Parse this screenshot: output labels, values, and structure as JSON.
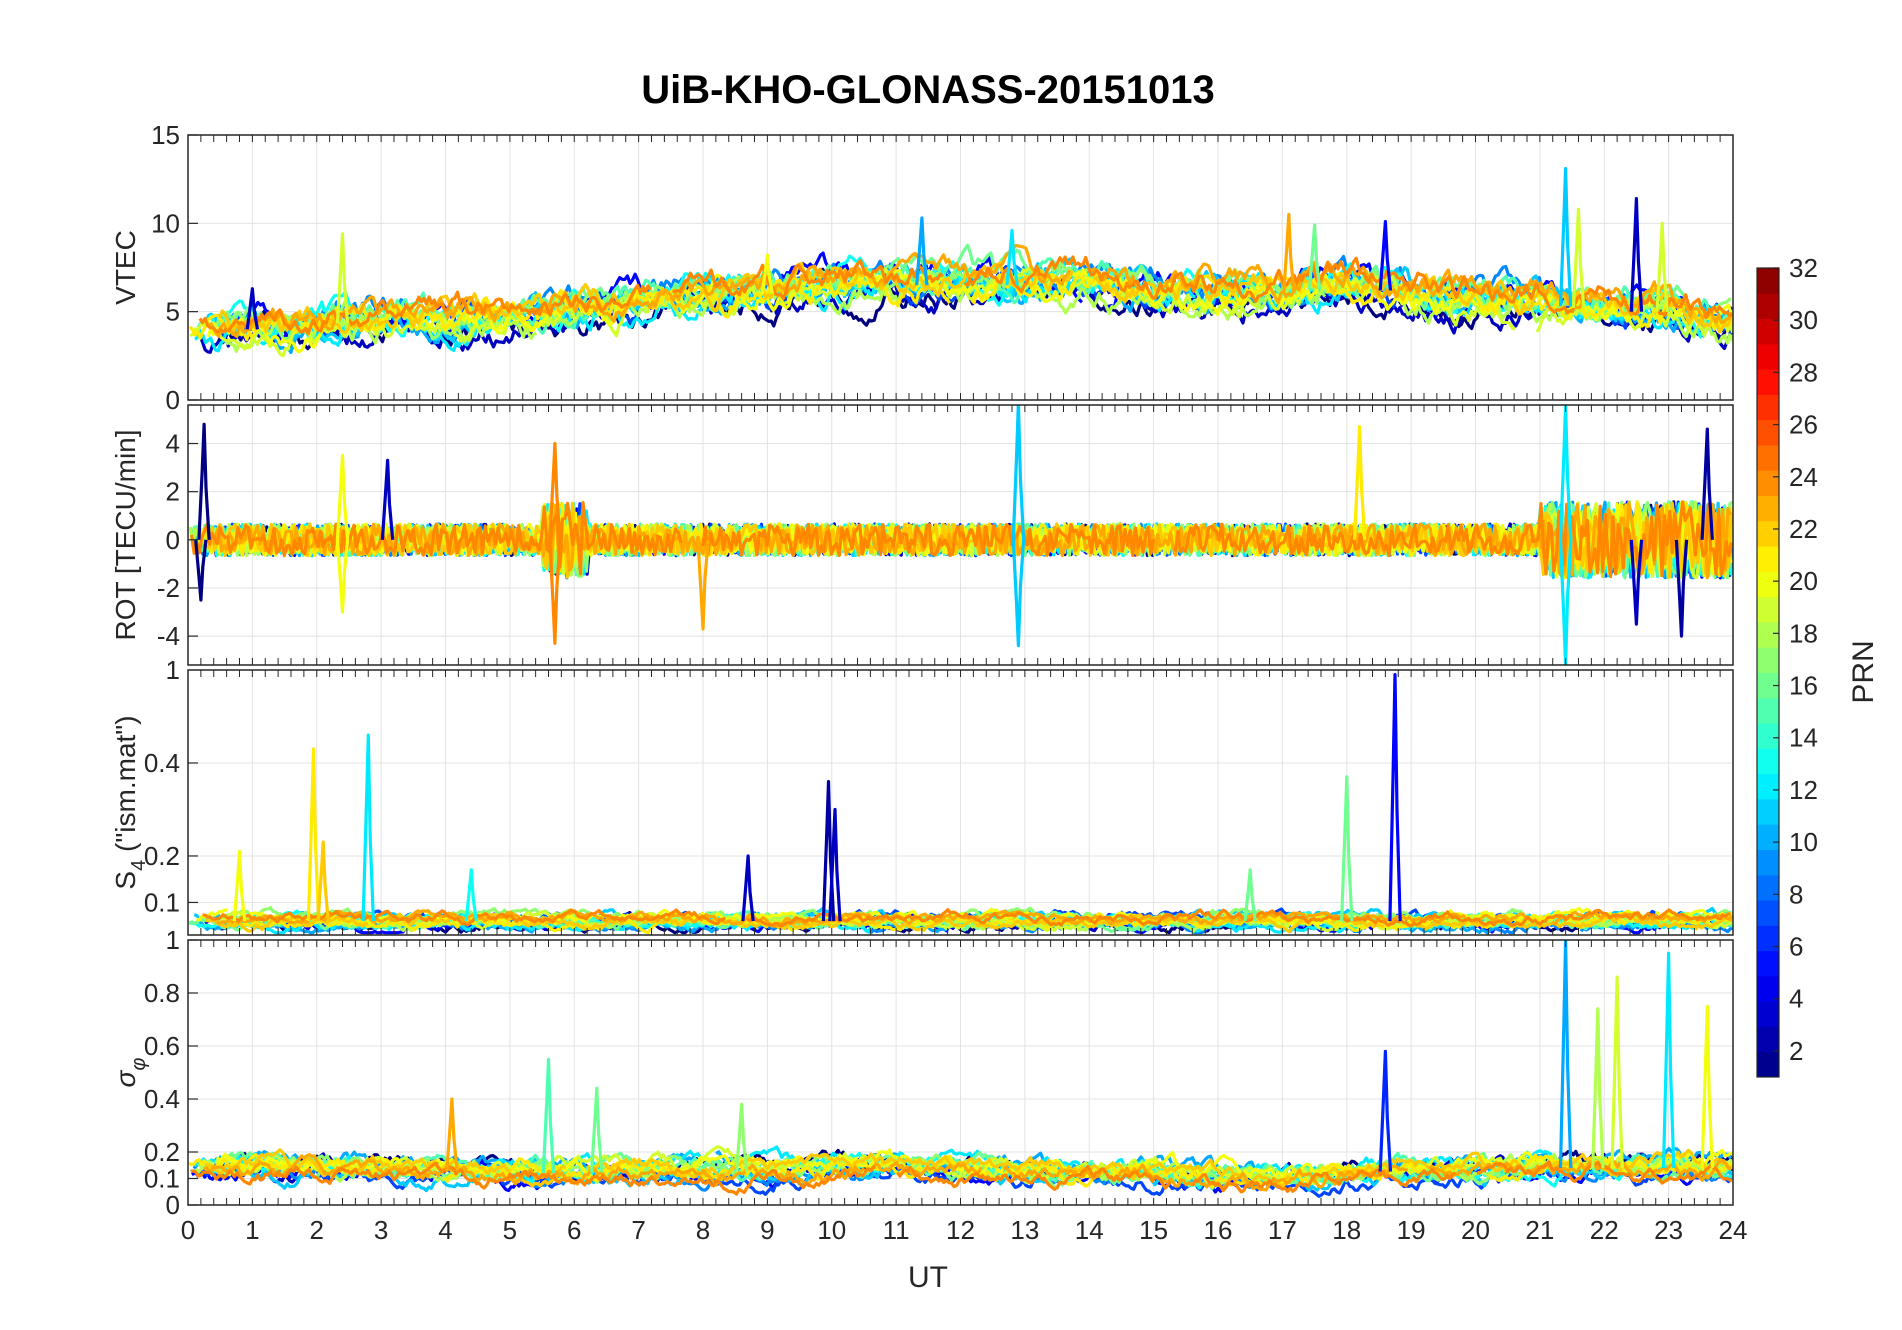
{
  "chart_data": {
    "type": "line",
    "title": "UiB-KHO-GLONASS-20151013",
    "xlabel": "UT",
    "x_ticks": [
      "0",
      "1",
      "2",
      "3",
      "4",
      "5",
      "6",
      "7",
      "8",
      "9",
      "10",
      "11",
      "12",
      "13",
      "14",
      "15",
      "16",
      "17",
      "18",
      "19",
      "20",
      "21",
      "22",
      "23",
      "24"
    ],
    "xlim": [
      0,
      24
    ],
    "grid": true,
    "colorbar": {
      "label": "PRN",
      "range": [
        1,
        32
      ],
      "ticks": [
        "2",
        "4",
        "6",
        "8",
        "10",
        "12",
        "14",
        "16",
        "18",
        "20",
        "22",
        "24",
        "26",
        "28",
        "30",
        "32"
      ],
      "colormap": "jet"
    },
    "panels": [
      {
        "id": "vtec",
        "ylabel": "VTEC",
        "ylim": [
          0,
          15
        ],
        "yticks": [
          "0",
          "5",
          "10",
          "15"
        ],
        "baseline": [
          3.8,
          4.0,
          4.2,
          4.5,
          4.5,
          4.5,
          5.0,
          5.5,
          6.0,
          6.0,
          6.5,
          6.5,
          6.5,
          6.5,
          6.5,
          6.0,
          6.0,
          6.0,
          6.5,
          6.0,
          5.5,
          5.5,
          5.0,
          5.0,
          4.0
        ],
        "amplitude": 1.0,
        "spikes": [
          [
            1,
            6.3,
            3
          ],
          [
            2.4,
            9.4,
            19
          ],
          [
            9,
            8.2,
            20
          ],
          [
            11.4,
            10.3,
            10
          ],
          [
            12.8,
            9.6,
            12
          ],
          [
            17.1,
            10.5,
            23
          ],
          [
            17.5,
            9.9,
            16
          ],
          [
            18.6,
            10.1,
            5
          ],
          [
            21.4,
            13.1,
            11
          ],
          [
            21.6,
            10.8,
            19
          ],
          [
            22.5,
            11.4,
            3
          ],
          [
            22.9,
            10,
            19
          ]
        ]
      },
      {
        "id": "rot",
        "ylabel": "ROT [TECU/min]",
        "ylim": [
          -5.2,
          5.6
        ],
        "yticks": [
          "-4",
          "-2",
          "0",
          "2",
          "4"
        ],
        "baseline": [
          0,
          0,
          0,
          0,
          0,
          0,
          0,
          0,
          0,
          0,
          0,
          0,
          0,
          0,
          0,
          0,
          0,
          0,
          0,
          0,
          0,
          0,
          0,
          0,
          0
        ],
        "amplitude": 0.6,
        "spikes": [
          [
            0.25,
            4.8,
            1
          ],
          [
            0.2,
            -2.5,
            1
          ],
          [
            2.4,
            3.5,
            20
          ],
          [
            2.4,
            -3,
            20
          ],
          [
            3.1,
            3.3,
            3
          ],
          [
            5.7,
            4,
            24
          ],
          [
            5.7,
            -4.3,
            24
          ],
          [
            8,
            -3.7,
            23
          ],
          [
            12.9,
            5.7,
            11
          ],
          [
            12.9,
            -4.4,
            11
          ],
          [
            18.2,
            4.7,
            21
          ],
          [
            21.4,
            5.6,
            12
          ],
          [
            21.4,
            -5.2,
            12
          ],
          [
            22.5,
            -3.5,
            3
          ],
          [
            23.6,
            4.6,
            2
          ],
          [
            23.2,
            -4,
            2
          ]
        ]
      },
      {
        "id": "s4",
        "ylabel": "S4 (\"ism.mat\")",
        "ylabel_main": "S",
        "ylabel_sub": "4",
        "ylabel_rest": " (\"ism.mat\")",
        "ylim": [
          0.03,
          0.6
        ],
        "yticks": [
          "0.1",
          "0.2",
          "0.4"
        ],
        "ytick_values": [
          0.1,
          0.2,
          0.4
        ],
        "top_tick": "1",
        "baseline": [
          0.06,
          0.06,
          0.06,
          0.06,
          0.06,
          0.06,
          0.06,
          0.06,
          0.06,
          0.06,
          0.06,
          0.06,
          0.06,
          0.06,
          0.06,
          0.06,
          0.06,
          0.06,
          0.06,
          0.06,
          0.06,
          0.06,
          0.06,
          0.06,
          0.06
        ],
        "amplitude": 0.015,
        "spikes": [
          [
            0.8,
            0.21,
            20
          ],
          [
            1.95,
            0.43,
            21
          ],
          [
            2.1,
            0.23,
            22
          ],
          [
            2.8,
            0.46,
            12
          ],
          [
            8.7,
            0.2,
            3
          ],
          [
            9.95,
            0.36,
            2
          ],
          [
            10.05,
            0.3,
            3
          ],
          [
            18,
            0.37,
            16
          ],
          [
            18.75,
            0.59,
            5
          ],
          [
            4.4,
            0.17,
            13
          ],
          [
            16.5,
            0.17,
            16
          ]
        ]
      },
      {
        "id": "sigma_phi",
        "ylabel": "σφ",
        "ylabel_main": "σ",
        "ylabel_sub": "φ",
        "ylim": [
          0,
          1
        ],
        "yticks": [
          "0",
          "0.1",
          "0.2",
          "0.4",
          "0.6",
          "0.8",
          "1"
        ],
        "ytick_values": [
          0,
          0.1,
          0.2,
          0.4,
          0.6,
          0.8,
          1
        ],
        "baseline": [
          0.14,
          0.14,
          0.14,
          0.13,
          0.13,
          0.12,
          0.12,
          0.13,
          0.13,
          0.12,
          0.14,
          0.14,
          0.13,
          0.12,
          0.12,
          0.12,
          0.1,
          0.1,
          0.12,
          0.13,
          0.13,
          0.14,
          0.14,
          0.14,
          0.14
        ],
        "amplitude": 0.04,
        "spikes": [
          [
            4.1,
            0.4,
            23
          ],
          [
            5.6,
            0.55,
            15
          ],
          [
            6.35,
            0.44,
            16
          ],
          [
            8.6,
            0.38,
            17
          ],
          [
            18.6,
            0.58,
            6
          ],
          [
            21.4,
            1.0,
            10
          ],
          [
            21.9,
            0.74,
            18
          ],
          [
            22.2,
            0.86,
            19
          ],
          [
            23,
            0.95,
            12
          ],
          [
            23.6,
            0.75,
            20
          ]
        ]
      }
    ]
  }
}
